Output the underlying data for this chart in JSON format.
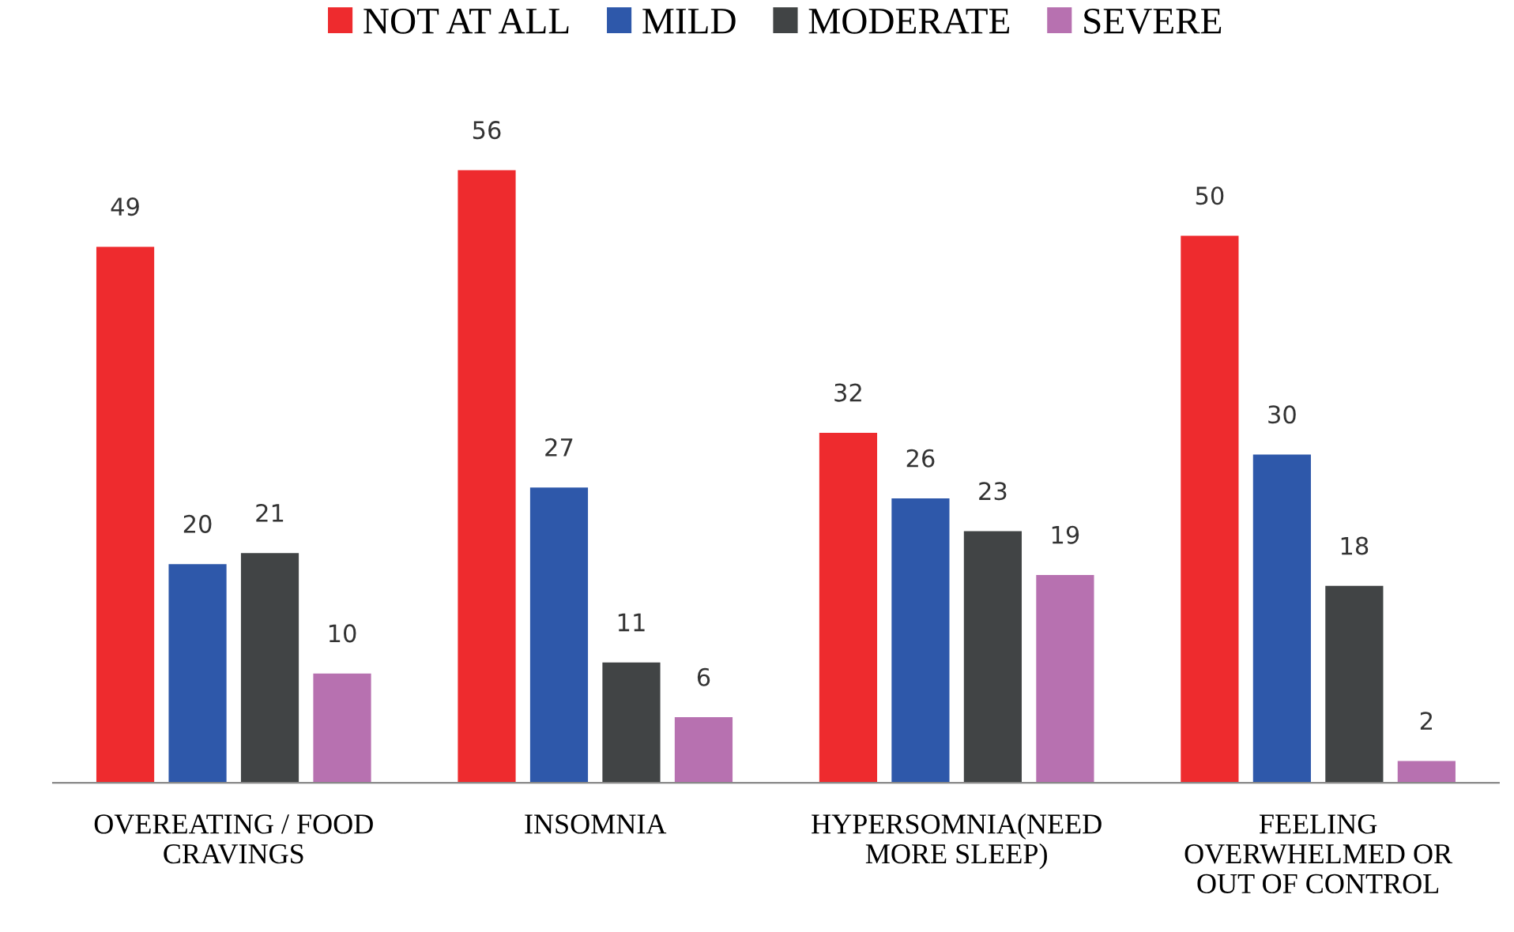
{
  "chart_data": {
    "type": "bar",
    "categories": [
      "OVEREATING / FOOD\nCRAVINGS",
      "INSOMNIA",
      "HYPERSOMNIA(NEED\nMORE SLEEP)",
      "FEELING\nOVERWHELMED OR\nOUT OF CONTROL"
    ],
    "series": [
      {
        "name": "NOT AT ALL",
        "color": "#ee2b2e",
        "values": [
          49,
          56,
          32,
          50
        ]
      },
      {
        "name": "MILD",
        "color": "#2e58aa",
        "values": [
          20,
          27,
          26,
          30
        ]
      },
      {
        "name": "MODERATE",
        "color": "#414445",
        "values": [
          21,
          11,
          23,
          18
        ]
      },
      {
        "name": "SEVERE",
        "color": "#b771b0",
        "values": [
          10,
          6,
          19,
          2
        ]
      }
    ],
    "data_labels": true,
    "legend": "top",
    "grid": false
  }
}
